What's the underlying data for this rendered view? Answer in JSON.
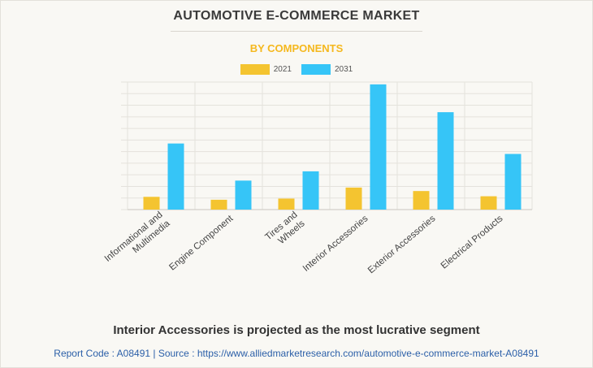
{
  "header": {
    "title": "AUTOMOTIVE E-COMMERCE MARKET",
    "subtitle": "BY COMPONENTS"
  },
  "footer": {
    "headline": "Interior Accessories is projected as the most lucrative segment",
    "report_line": "Report Code : A08491  |  Source : https://www.alliedmarketresearch.com/automotive-e-commerce-market-A08491"
  },
  "colors": {
    "series_2021": "#f4c430",
    "series_2031": "#36c5f7",
    "title": "#3a3a3a",
    "subtitle": "#f5b81e",
    "grid": "#e4e2dc"
  },
  "chart_data": {
    "type": "bar",
    "title": "AUTOMOTIVE E-COMMERCE MARKET",
    "subtitle": "BY COMPONENTS",
    "categories": [
      [
        "Informational and",
        "Multimedia"
      ],
      [
        "Engine Component"
      ],
      [
        "Tires and",
        "Wheels"
      ],
      [
        "Interior Accessories"
      ],
      [
        "Exterior Accessories"
      ],
      [
        "Electrical Products"
      ]
    ],
    "series": [
      {
        "name": "2021",
        "values": [
          11,
          8.5,
          9.5,
          19,
          16,
          11.5
        ]
      },
      {
        "name": "2031",
        "values": [
          57,
          25,
          33,
          108,
          84,
          48
        ]
      }
    ],
    "ylim": [
      0,
      110
    ],
    "grid": true,
    "legend": "top-center"
  }
}
